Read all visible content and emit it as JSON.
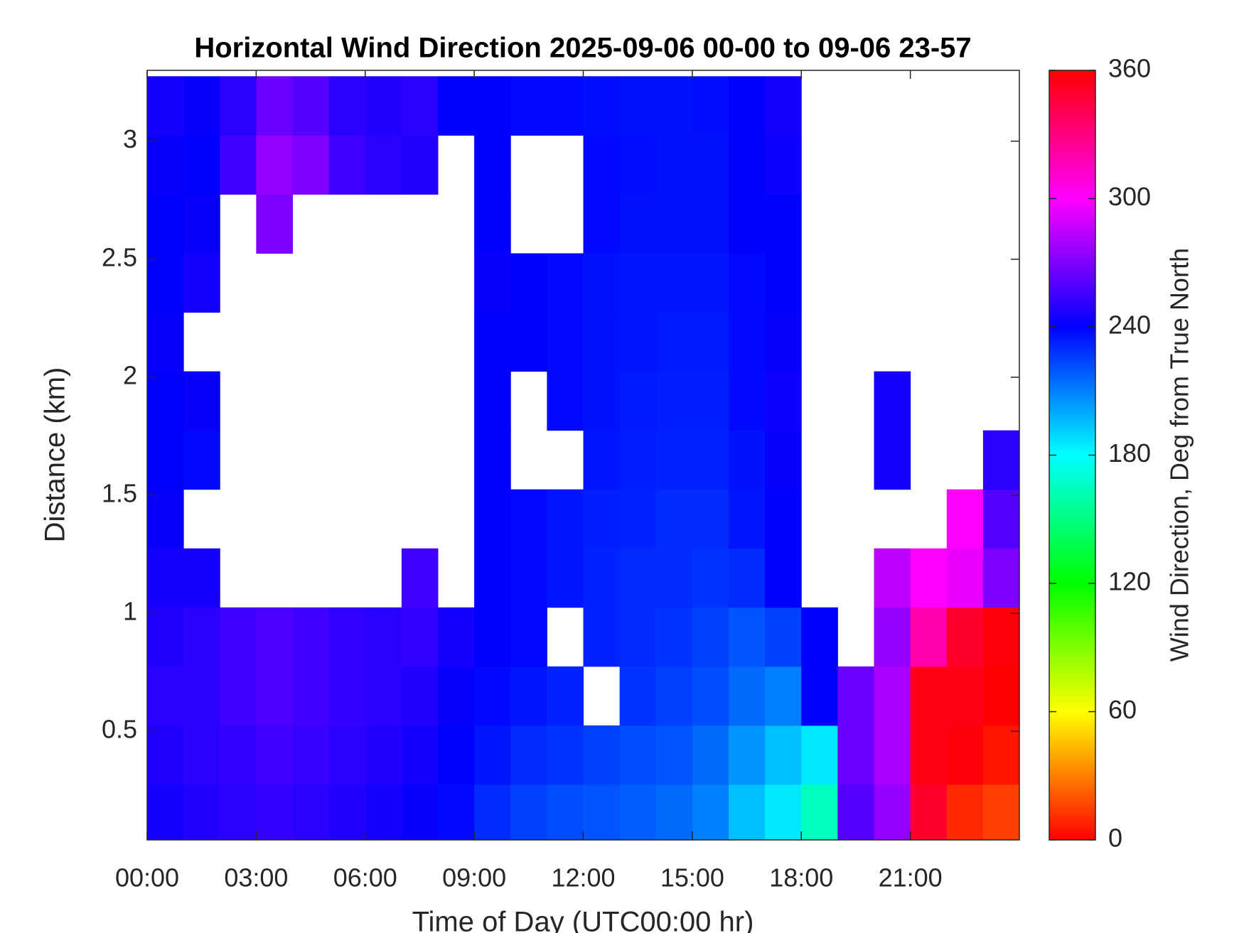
{
  "chart_data": {
    "type": "heatmap",
    "title": "Horizontal Wind Direction 2025-09-06 00-00 to 09-06 23-57",
    "x_label": "Time of Day (UTC00:00 hr)",
    "y_label": "Distance (km)",
    "colorbar_label": "Wind Direction, Deg from True North",
    "colormap": "hsv",
    "clim": [
      0,
      360
    ],
    "cticks": [
      0,
      60,
      120,
      180,
      240,
      300,
      360
    ],
    "xlim": [
      0,
      24
    ],
    "xticks": [
      {
        "value": 0,
        "label": "00:00"
      },
      {
        "value": 3,
        "label": "03:00"
      },
      {
        "value": 6,
        "label": "06:00"
      },
      {
        "value": 9,
        "label": "09:00"
      },
      {
        "value": 12,
        "label": "12:00"
      },
      {
        "value": 15,
        "label": "15:00"
      },
      {
        "value": 18,
        "label": "18:00"
      },
      {
        "value": 21,
        "label": "21:00"
      }
    ],
    "ylim": [
      0.04,
      3.3
    ],
    "yticks": [
      0.5,
      1,
      1.5,
      2,
      2.5,
      3
    ],
    "x": [
      0.5,
      1.5,
      2.5,
      3.5,
      4.5,
      5.5,
      6.5,
      7.5,
      8.5,
      9.5,
      10.5,
      11.5,
      12.5,
      13.5,
      14.5,
      15.5,
      16.5,
      17.5,
      18.5,
      19.5,
      20.5,
      21.5,
      22.5,
      23.5
    ],
    "y": [
      0.15,
      0.4,
      0.65,
      0.9,
      1.15,
      1.4,
      1.65,
      1.9,
      2.15,
      2.4,
      2.65,
      2.9,
      3.15
    ],
    "z": [
      [
        245,
        248,
        250,
        252,
        250,
        248,
        245,
        242,
        238,
        230,
        225,
        222,
        220,
        218,
        215,
        210,
        195,
        185,
        165,
        260,
        275,
        350,
        10,
        15
      ],
      [
        248,
        250,
        252,
        255,
        253,
        250,
        248,
        245,
        240,
        235,
        230,
        228,
        225,
        222,
        220,
        215,
        205,
        195,
        185,
        265,
        280,
        355,
        358,
        5
      ],
      [
        250,
        250,
        255,
        258,
        255,
        252,
        250,
        248,
        242,
        238,
        235,
        232,
        null,
        228,
        225,
        222,
        215,
        210,
        240,
        265,
        280,
        355,
        355,
        0
      ],
      [
        248,
        250,
        255,
        258,
        255,
        252,
        250,
        252,
        245,
        240,
        238,
        null,
        232,
        230,
        228,
        225,
        220,
        225,
        240,
        null,
        275,
        320,
        350,
        358
      ],
      [
        245,
        245,
        null,
        null,
        null,
        null,
        null,
        255,
        null,
        240,
        238,
        235,
        232,
        230,
        230,
        228,
        230,
        240,
        null,
        null,
        285,
        300,
        295,
        270
      ],
      [
        242,
        null,
        null,
        null,
        null,
        null,
        null,
        null,
        null,
        240,
        238,
        235,
        233,
        232,
        230,
        230,
        235,
        240,
        null,
        null,
        null,
        null,
        300,
        260
      ],
      [
        240,
        238,
        null,
        null,
        null,
        null,
        null,
        null,
        null,
        240,
        null,
        null,
        235,
        233,
        232,
        232,
        236,
        242,
        null,
        null,
        245,
        null,
        null,
        250
      ],
      [
        240,
        242,
        null,
        null,
        null,
        null,
        null,
        null,
        null,
        240,
        null,
        238,
        236,
        234,
        233,
        233,
        238,
        243,
        null,
        null,
        245,
        null,
        null,
        null
      ],
      [
        242,
        null,
        null,
        null,
        null,
        null,
        null,
        null,
        null,
        240,
        240,
        238,
        236,
        235,
        234,
        234,
        238,
        242,
        null,
        null,
        null,
        null,
        null,
        null
      ],
      [
        240,
        245,
        null,
        null,
        null,
        null,
        null,
        null,
        null,
        242,
        240,
        238,
        236,
        235,
        235,
        235,
        238,
        240,
        null,
        null,
        null,
        null,
        null,
        null
      ],
      [
        240,
        242,
        null,
        270,
        null,
        null,
        null,
        null,
        null,
        240,
        null,
        null,
        238,
        236,
        236,
        236,
        240,
        240,
        null,
        null,
        null,
        null,
        null,
        null
      ],
      [
        242,
        240,
        255,
        275,
        270,
        255,
        250,
        248,
        null,
        240,
        null,
        null,
        238,
        237,
        236,
        236,
        240,
        243,
        null,
        null,
        null,
        null,
        null,
        null
      ],
      [
        245,
        242,
        250,
        265,
        260,
        250,
        248,
        250,
        240,
        240,
        238,
        238,
        237,
        236,
        236,
        237,
        240,
        245,
        null,
        null,
        null,
        null,
        null,
        null
      ]
    ]
  }
}
